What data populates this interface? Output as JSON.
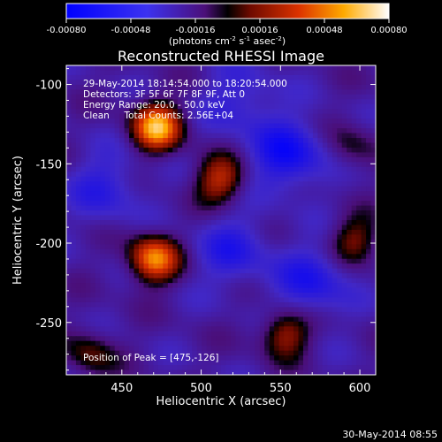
{
  "colorbar": {
    "ticks": [
      "-0.00080",
      "-0.00048",
      "-0.00016",
      "0.00016",
      "0.00048",
      "0.00080"
    ],
    "unit_html": "(photons cm<tspan baseline-shift='super' font-size='7'>-2</tspan> s<tspan baseline-shift='super' font-size='7'>-1</tspan> asec<tspan baseline-shift='super' font-size='7'>-2</tspan>)",
    "unit_text": "(photons cm-2 s-1 asec-2)",
    "range": [
      -0.0008,
      0.0008
    ]
  },
  "chart_data": {
    "type": "heatmap",
    "title": "Reconstructed RHESSI Image",
    "xlabel": "Heliocentric X (arcsec)",
    "ylabel": "Heliocentric Y (arcsec)",
    "xlim": [
      415,
      610
    ],
    "ylim": [
      -283,
      -88
    ],
    "x_ticks": [
      450,
      500,
      550,
      600
    ],
    "y_ticks": [
      -100,
      -150,
      -200,
      -250
    ],
    "info_lines": [
      "29-May-2014 18:14:54.000 to 18:20:54.000",
      "Detectors: 3F 5F 6F 7F 8F 9F, Att 0",
      "Energy Range: 20.0 - 50.0 keV",
      "Clean     Total Counts: 2.56E+04"
    ],
    "peak_annotation": "Position of Peak = [475,-126]",
    "peak": [
      475,
      -126
    ],
    "sources": [
      {
        "x": 472,
        "y": -127,
        "value": 0.0008
      },
      {
        "x": 470,
        "y": -210,
        "value": 0.00072
      },
      {
        "x": 512,
        "y": -160,
        "value": 0.0005
      },
      {
        "x": 553,
        "y": -257,
        "value": 0.00045
      },
      {
        "x": 597,
        "y": -198,
        "value": 0.00035
      },
      {
        "x": 430,
        "y": -270,
        "value": 0.0003
      },
      {
        "x": 595,
        "y": -140,
        "value": 0.00022
      }
    ],
    "negative_regions": [
      {
        "x": 555,
        "y": -145,
        "value": -0.00045
      },
      {
        "x": 520,
        "y": -205,
        "value": -0.0003
      },
      {
        "x": 570,
        "y": -225,
        "value": -0.00035
      },
      {
        "x": 525,
        "y": -110,
        "value": -0.00025
      },
      {
        "x": 440,
        "y": -165,
        "value": -0.00028
      }
    ]
  },
  "timestamp": "30-May-2014 08:55"
}
